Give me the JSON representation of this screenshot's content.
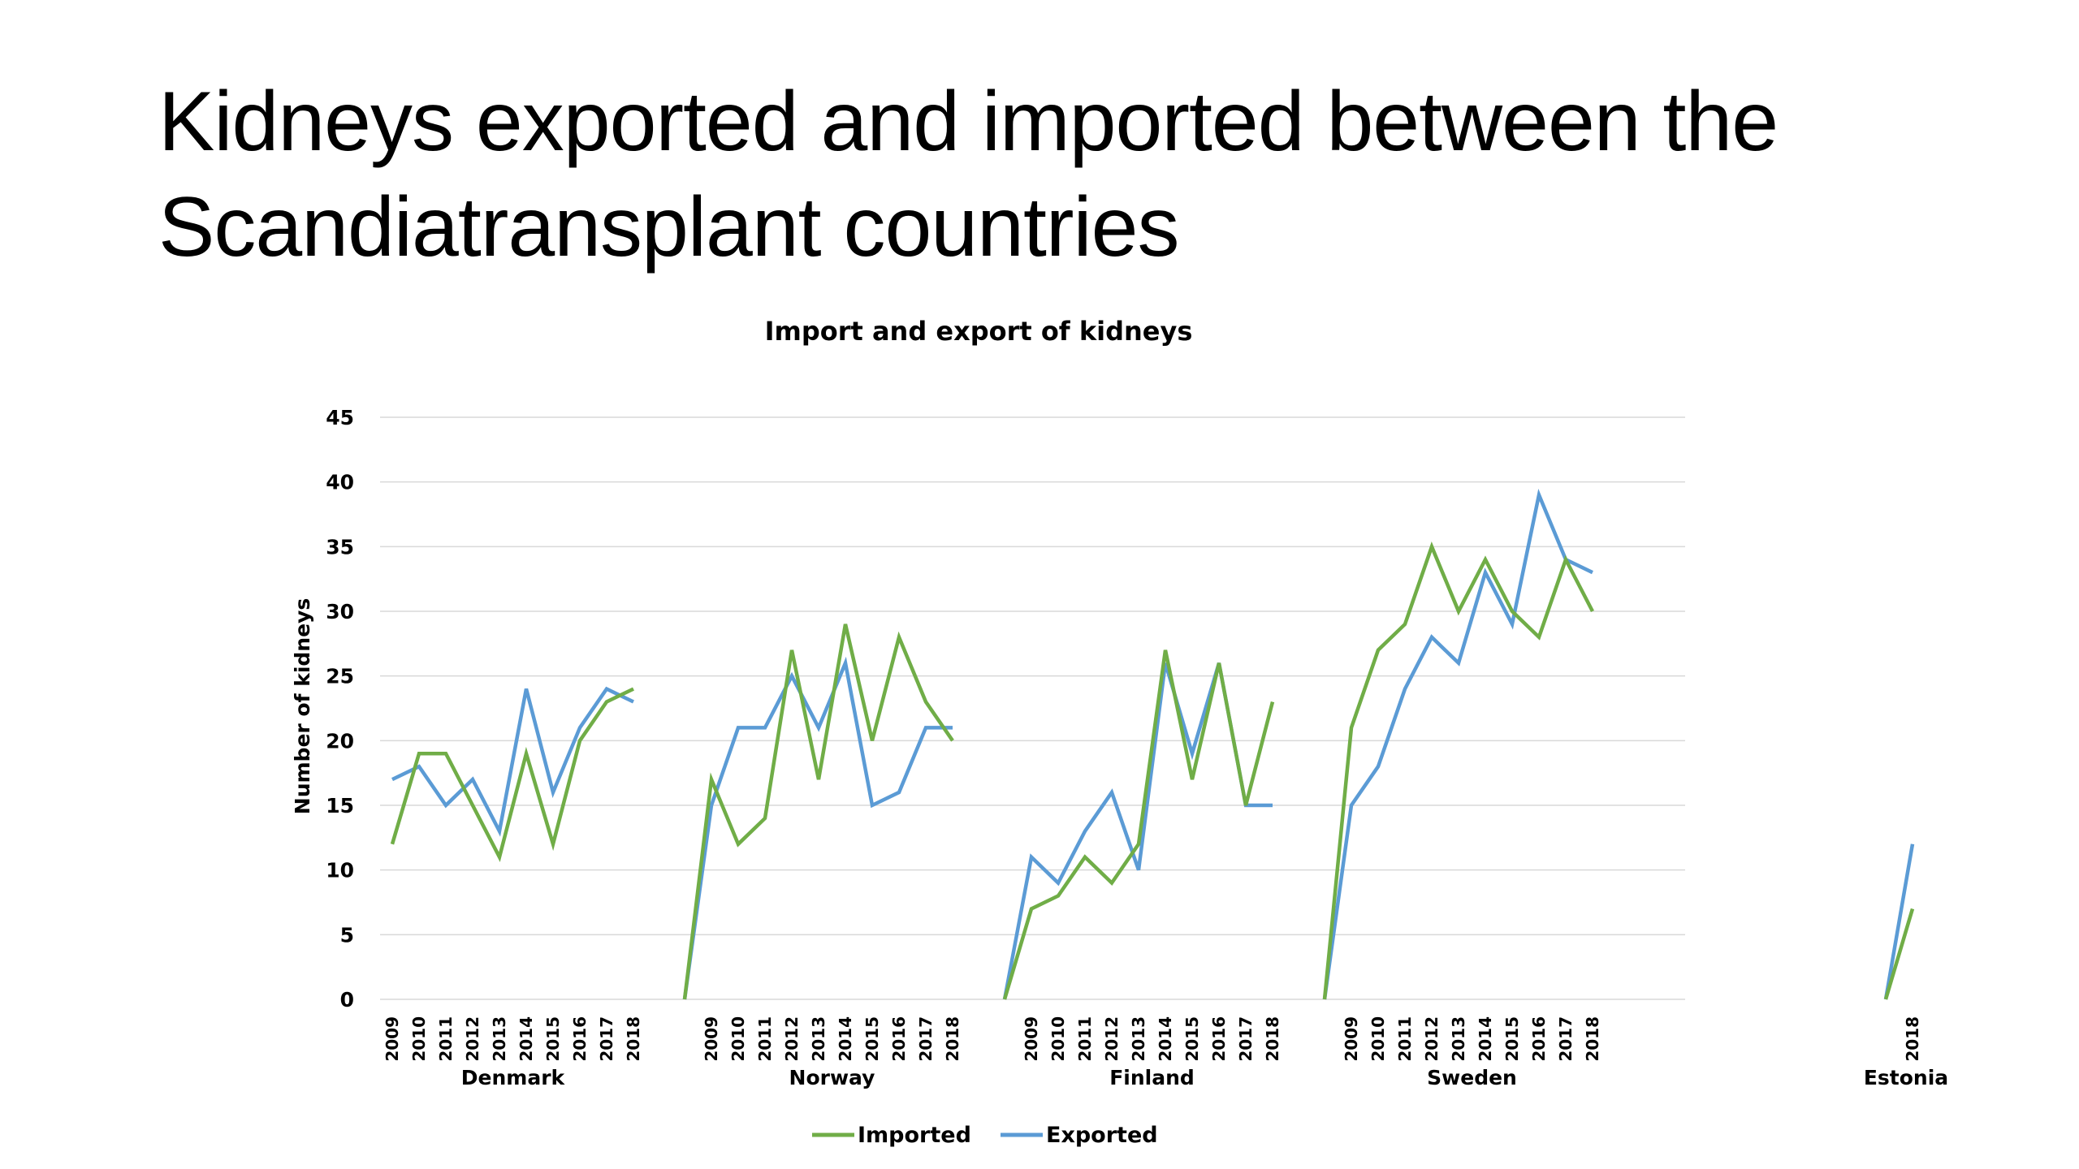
{
  "slide": {
    "title_line1": "Kidneys exported and imported between the",
    "title_line2": "Scandiatransplant countries"
  },
  "chart_data": {
    "type": "line",
    "title": "Import and export of kidneys",
    "ylabel": "Number of kidneys",
    "ylim": [
      0,
      45
    ],
    "yticks": [
      0,
      5,
      10,
      15,
      20,
      25,
      30,
      35,
      40,
      45
    ],
    "grid": true,
    "legend_position": "bottom",
    "groups": [
      {
        "name": "Denmark",
        "years": [
          "2009",
          "2010",
          "2011",
          "2012",
          "2013",
          "2014",
          "2015",
          "2016",
          "2017",
          "2018"
        ]
      },
      {
        "name": "Norway",
        "years": [
          "2009",
          "2010",
          "2011",
          "2012",
          "2013",
          "2014",
          "2015",
          "2016",
          "2017",
          "2018"
        ]
      },
      {
        "name": "Finland",
        "years": [
          "2009",
          "2010",
          "2011",
          "2012",
          "2013",
          "2014",
          "2015",
          "2016",
          "2017",
          "2018"
        ]
      },
      {
        "name": "Sweden",
        "years": [
          "2009",
          "2010",
          "2011",
          "2012",
          "2013",
          "2014",
          "2015",
          "2016",
          "2017",
          "2018"
        ]
      },
      {
        "name": "Estonia",
        "years": [
          "2018"
        ]
      }
    ],
    "series": [
      {
        "name": "Imported",
        "color": "#70ad47",
        "values": [
          [
            12,
            19,
            19,
            15,
            11,
            19,
            12,
            20,
            23,
            24
          ],
          [
            17,
            12,
            14,
            27,
            17,
            29,
            20,
            28,
            23,
            20
          ],
          [
            7,
            8,
            11,
            9,
            12,
            27,
            17,
            26,
            15,
            23
          ],
          [
            21,
            27,
            29,
            35,
            30,
            34,
            30,
            28,
            34,
            30
          ],
          [
            7
          ]
        ]
      },
      {
        "name": "Exported",
        "color": "#5b9bd5",
        "values": [
          [
            17,
            18,
            15,
            17,
            13,
            24,
            16,
            21,
            24,
            23
          ],
          [
            15,
            21,
            21,
            25,
            21,
            26,
            15,
            16,
            21,
            21
          ],
          [
            11,
            9,
            13,
            16,
            10,
            26,
            19,
            26,
            15,
            15
          ],
          [
            15,
            18,
            24,
            28,
            26,
            33,
            29,
            39,
            34,
            33
          ],
          [
            12
          ]
        ]
      }
    ]
  }
}
